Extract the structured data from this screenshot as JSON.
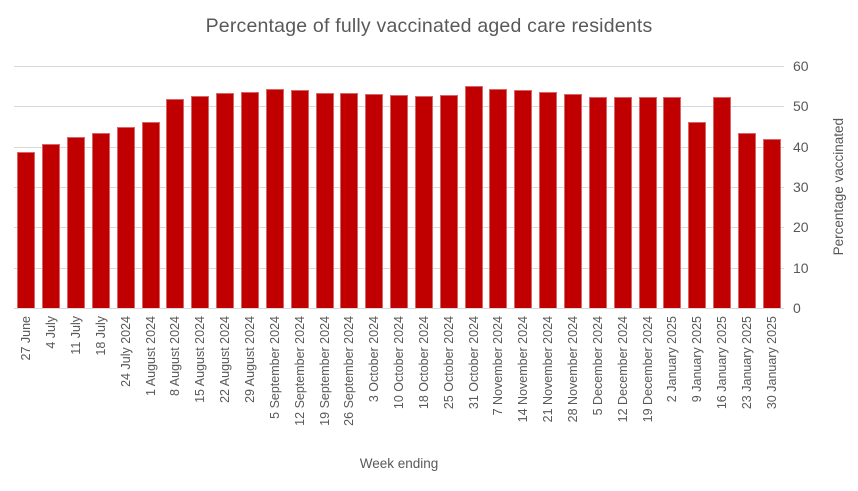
{
  "chart_data": {
    "type": "bar",
    "title": "Percentage of fully vaccinated aged care residents",
    "xlabel": "Week ending",
    "ylabel": "Percentage vaccinated",
    "ylim": [
      0,
      60
    ],
    "ytick_step": 10,
    "yticks": [
      0,
      10,
      20,
      30,
      40,
      50,
      60
    ],
    "grid": true,
    "legend": false,
    "bar_color": "#c00000",
    "gridline_color": "#d9d9d9",
    "text_color": "#595959",
    "categories": [
      "27 June",
      "4 July",
      "11 July",
      "18 July",
      "24 July 2024",
      "1 August 2024",
      "8 August 2024",
      "15 August 2024",
      "22 August 2024",
      "29 August 2024",
      "5 September 2024",
      "12 September 2024",
      "19 September 2024",
      "26 September 2024",
      "3 October 2024",
      "10 October 2024",
      "18 October 2024",
      "25 October 2024",
      "31 October 2024",
      "7 November 2024",
      "14 November 2024",
      "21 November 2024",
      "28 November 2024",
      "5 December 2024",
      "12 December 2024",
      "19 December 2024",
      "2 January 2025",
      "9 January 2025",
      "16 January 2025",
      "23 January 2025",
      "30 January 2025"
    ],
    "values": [
      38.6,
      40.6,
      42.4,
      43.4,
      44.8,
      46.1,
      51.8,
      52.5,
      53.2,
      53.5,
      54.2,
      54.1,
      53.4,
      53.3,
      53.0,
      52.7,
      52.6,
      52.8,
      55.0,
      54.3,
      54.0,
      53.6,
      53.1,
      52.2,
      52.2,
      52.2,
      52.2,
      46.2,
      52.4,
      43.4,
      42.0
    ]
  }
}
